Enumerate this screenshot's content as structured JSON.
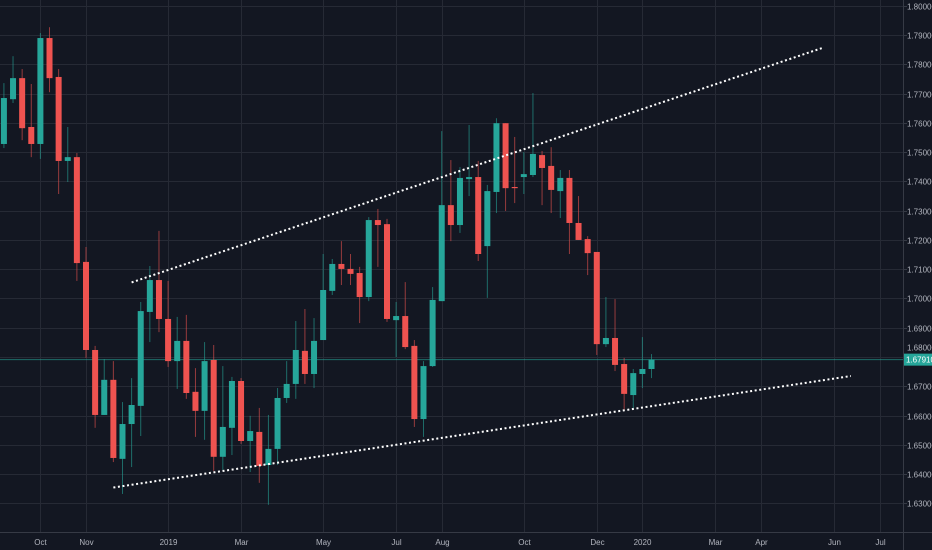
{
  "chart_data": {
    "type": "candlestick",
    "interval": "weekly",
    "colors": {
      "background": "#131722",
      "grid": "#262a35",
      "up": "#26a69a",
      "down": "#ef5350",
      "text": "#b2b5be",
      "trendline": "#ffffff",
      "last_price": "#26a69a"
    },
    "ylim": [
      1.6202,
      1.802
    ],
    "xlim": [
      "2018-08-31",
      "2020-07-24"
    ],
    "grid": true,
    "y_ticks": [
      "1.63000",
      "1.64000",
      "1.65000",
      "1.66000",
      "1.67000",
      "1.68000",
      "1.69000",
      "1.70000",
      "1.71000",
      "1.72000",
      "1.73000",
      "1.74000",
      "1.75000",
      "1.76000",
      "1.77000",
      "1.78000",
      "1.79000",
      "1.80000"
    ],
    "x_ticks": [
      {
        "label": "Oct",
        "date": "2018-10-01"
      },
      {
        "label": "Nov",
        "date": "2018-11-05"
      },
      {
        "label": "2019",
        "date": "2019-01-07"
      },
      {
        "label": "Mar",
        "date": "2019-03-04"
      },
      {
        "label": "May",
        "date": "2019-05-06"
      },
      {
        "label": "Jul",
        "date": "2019-07-01"
      },
      {
        "label": "Aug",
        "date": "2019-08-05"
      },
      {
        "label": "Oct",
        "date": "2019-10-07"
      },
      {
        "label": "Dec",
        "date": "2019-12-02"
      },
      {
        "label": "2020",
        "date": "2020-01-06"
      },
      {
        "label": "Mar",
        "date": "2020-03-02"
      },
      {
        "label": "Apr",
        "date": "2020-04-06"
      },
      {
        "label": "Jun",
        "date": "2020-06-01"
      },
      {
        "label": "Jul",
        "date": "2020-07-06"
      }
    ],
    "last_price": {
      "value": 1.6791,
      "label": "1.67910"
    },
    "candles_fields": [
      "date",
      "open",
      "high",
      "low",
      "close"
    ],
    "candles": [
      [
        "2018-09-03",
        1.7528,
        1.7736,
        1.7514,
        1.7685
      ],
      [
        "2018-09-10",
        1.7681,
        1.7828,
        1.7668,
        1.7753
      ],
      [
        "2018-09-17",
        1.7753,
        1.7784,
        1.7541,
        1.7582
      ],
      [
        "2018-09-24",
        1.7586,
        1.7733,
        1.7483,
        1.7528
      ],
      [
        "2018-10-01",
        1.7528,
        1.7907,
        1.7477,
        1.789
      ],
      [
        "2018-10-08",
        1.789,
        1.7927,
        1.7705,
        1.7753
      ],
      [
        "2018-10-15",
        1.7757,
        1.7784,
        1.7357,
        1.747
      ],
      [
        "2018-10-22",
        1.747,
        1.7586,
        1.7398,
        1.7483
      ],
      [
        "2018-10-29",
        1.7483,
        1.7497,
        1.706,
        1.7121
      ],
      [
        "2018-11-05",
        1.7125,
        1.7176,
        1.6797,
        1.6824
      ],
      [
        "2018-11-12",
        1.6824,
        1.6838,
        1.6558,
        1.6602
      ],
      [
        "2018-11-19",
        1.6602,
        1.6793,
        1.6602,
        1.6722
      ],
      [
        "2018-11-26",
        1.6722,
        1.6786,
        1.6441,
        1.6455
      ],
      [
        "2018-12-03",
        1.6452,
        1.6646,
        1.6332,
        1.6571
      ],
      [
        "2018-12-10",
        1.6571,
        1.6728,
        1.6424,
        1.6636
      ],
      [
        "2018-12-17",
        1.6633,
        1.6988,
        1.653,
        1.6957
      ],
      [
        "2018-12-24",
        1.6954,
        1.7111,
        1.6851,
        1.7063
      ],
      [
        "2018-12-31",
        1.7063,
        1.7231,
        1.6885,
        1.693
      ],
      [
        "2019-01-07",
        1.693,
        1.706,
        1.6766,
        1.6786
      ],
      [
        "2019-01-14",
        1.6786,
        1.6937,
        1.6691,
        1.6855
      ],
      [
        "2019-01-21",
        1.6855,
        1.6944,
        1.6657,
        1.6677
      ],
      [
        "2019-01-28",
        1.6681,
        1.6762,
        1.6527,
        1.6616
      ],
      [
        "2019-02-04",
        1.6616,
        1.6851,
        1.6517,
        1.6786
      ],
      [
        "2019-02-11",
        1.679,
        1.6841,
        1.6411,
        1.6459
      ],
      [
        "2019-02-18",
        1.6459,
        1.6769,
        1.6414,
        1.6561
      ],
      [
        "2019-02-25",
        1.6558,
        1.6732,
        1.6465,
        1.6718
      ],
      [
        "2019-03-04",
        1.6718,
        1.6728,
        1.6503,
        1.6513
      ],
      [
        "2019-03-11",
        1.6513,
        1.6599,
        1.6407,
        1.6547
      ],
      [
        "2019-03-18",
        1.6544,
        1.6626,
        1.637,
        1.6428
      ],
      [
        "2019-03-25",
        1.6431,
        1.6602,
        1.6295,
        1.6486
      ],
      [
        "2019-04-01",
        1.6486,
        1.6694,
        1.6431,
        1.666
      ],
      [
        "2019-04-08",
        1.666,
        1.6786,
        1.6643,
        1.6708
      ],
      [
        "2019-04-15",
        1.6708,
        1.6923,
        1.6657,
        1.6824
      ],
      [
        "2019-04-22",
        1.6821,
        1.6964,
        1.6708,
        1.6742
      ],
      [
        "2019-04-29",
        1.6742,
        1.6933,
        1.6694,
        1.6855
      ],
      [
        "2019-05-06",
        1.6858,
        1.7152,
        1.6858,
        1.7029
      ],
      [
        "2019-05-13",
        1.7026,
        1.7135,
        1.7012,
        1.7118
      ],
      [
        "2019-05-20",
        1.7118,
        1.7196,
        1.7046,
        1.7101
      ],
      [
        "2019-05-27",
        1.7101,
        1.7152,
        1.7046,
        1.7084
      ],
      [
        "2019-06-03",
        1.7087,
        1.7108,
        1.6916,
        1.7005
      ],
      [
        "2019-06-10",
        1.7005,
        1.7278,
        1.6991,
        1.7268
      ],
      [
        "2019-06-17",
        1.7268,
        1.7306,
        1.7108,
        1.7251
      ],
      [
        "2019-06-24",
        1.7254,
        1.7272,
        1.692,
        1.693
      ],
      [
        "2019-07-01",
        1.6926,
        1.6988,
        1.68,
        1.694
      ],
      [
        "2019-07-08",
        1.694,
        1.7056,
        1.6827,
        1.6834
      ],
      [
        "2019-07-15",
        1.6838,
        1.6858,
        1.6561,
        1.6588
      ],
      [
        "2019-07-22",
        1.6588,
        1.6786,
        1.6527,
        1.6769
      ],
      [
        "2019-07-29",
        1.6769,
        1.7039,
        1.6766,
        1.6995
      ],
      [
        "2019-08-05",
        1.6991,
        1.7572,
        1.6991,
        1.7319
      ],
      [
        "2019-08-12",
        1.7319,
        1.7473,
        1.7196,
        1.7251
      ],
      [
        "2019-08-19",
        1.7251,
        1.7449,
        1.7224,
        1.7412
      ],
      [
        "2019-08-26",
        1.7408,
        1.7593,
        1.735,
        1.7415
      ],
      [
        "2019-09-02",
        1.7415,
        1.747,
        1.7128,
        1.7152
      ],
      [
        "2019-09-09",
        1.7179,
        1.7388,
        1.7002,
        1.7367
      ],
      [
        "2019-09-16",
        1.7364,
        1.7616,
        1.7292,
        1.7599
      ],
      [
        "2019-09-23",
        1.7599,
        1.7599,
        1.7299,
        1.7377
      ],
      [
        "2019-09-30",
        1.7381,
        1.7552,
        1.7326,
        1.7377
      ],
      [
        "2019-10-07",
        1.7415,
        1.75,
        1.7357,
        1.7425
      ],
      [
        "2019-10-14",
        1.7422,
        1.7702,
        1.7415,
        1.7494
      ],
      [
        "2019-10-21",
        1.749,
        1.7504,
        1.7319,
        1.7446
      ],
      [
        "2019-10-28",
        1.7453,
        1.7517,
        1.7292,
        1.7371
      ],
      [
        "2019-11-04",
        1.7367,
        1.7439,
        1.7275,
        1.7412
      ],
      [
        "2019-11-11",
        1.7412,
        1.7439,
        1.7152,
        1.7258
      ],
      [
        "2019-11-18",
        1.7258,
        1.735,
        1.72,
        1.72
      ],
      [
        "2019-11-25",
        1.7203,
        1.7213,
        1.708,
        1.7155
      ],
      [
        "2019-12-02",
        1.7159,
        1.7159,
        1.6807,
        1.6844
      ],
      [
        "2019-12-09",
        1.6844,
        1.7005,
        1.6834,
        1.6865
      ],
      [
        "2019-12-16",
        1.6865,
        1.6998,
        1.6752,
        1.6773
      ],
      [
        "2019-12-23",
        1.6776,
        1.6797,
        1.6616,
        1.6674
      ],
      [
        "2019-12-30",
        1.667,
        1.6759,
        1.6619,
        1.6745
      ],
      [
        "2020-01-06",
        1.6742,
        1.6868,
        1.6694,
        1.6759
      ],
      [
        "2020-01-13",
        1.6759,
        1.681,
        1.6728,
        1.6791
      ]
    ],
    "trendlines": [
      {
        "style": "dotted",
        "start": {
          "date": "2018-12-10",
          "price": 1.7055
        },
        "end": {
          "date": "2020-05-23",
          "price": 1.7856
        }
      },
      {
        "style": "dotted",
        "start": {
          "date": "2018-11-26",
          "price": 1.6354
        },
        "end": {
          "date": "2020-06-14",
          "price": 1.6735
        }
      }
    ]
  }
}
